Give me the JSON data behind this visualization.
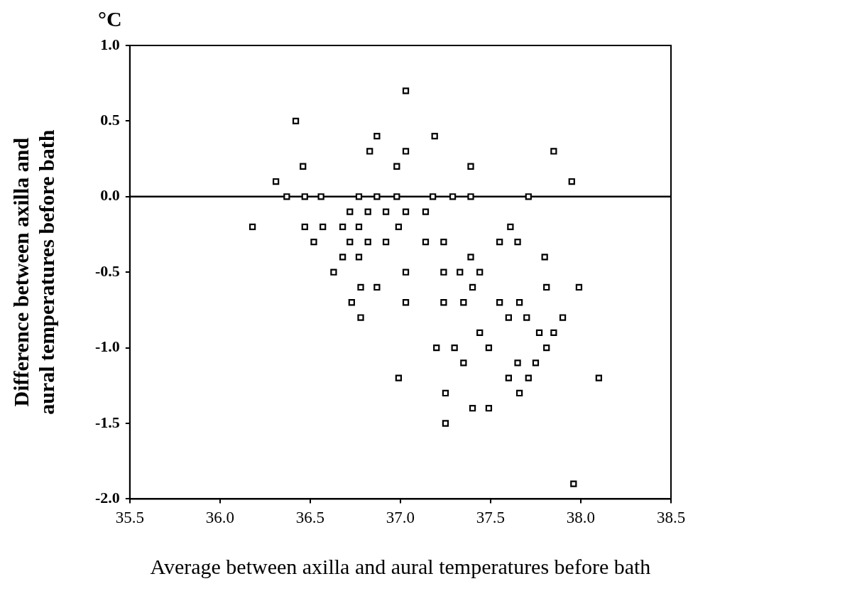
{
  "chart_data": {
    "type": "scatter",
    "xlabel": "Average between axilla and aural temperatures before bath",
    "ylabel": "Difference between axilla and\naural temperatures before bath",
    "annotations": [
      "°C"
    ],
    "marker": "square",
    "grid": false,
    "legend": false,
    "xlim": [
      35.5,
      38.5
    ],
    "xticks": [
      35.5,
      {
        "value": 36,
        "label": "36.0"
      },
      36.5,
      {
        "value": 37,
        "label": "37.0"
      },
      37.5,
      {
        "value": 38,
        "label": "38.0"
      },
      38.5
    ],
    "ylim": [
      -2,
      1
    ],
    "yticks": [
      {
        "value": -2,
        "label": "-2.0"
      },
      -1.5,
      {
        "value": -1,
        "label": "-1.0"
      },
      -0.5,
      {
        "value": 0,
        "label": "0.0"
      },
      0.5,
      {
        "value": 1,
        "label": "1.0"
      }
    ],
    "ref_lines": [
      {
        "axis": "y",
        "value": 0,
        "color": "#000000"
      }
    ],
    "series": [
      {
        "color": "#000000",
        "x": [
          37.03,
          36.42,
          36.87,
          37.19,
          36.83,
          37.03,
          37.85,
          36.46,
          36.98,
          37.39,
          36.31,
          37.95,
          36.37,
          36.47,
          36.56,
          36.77,
          36.87,
          36.98,
          37.18,
          37.29,
          37.39,
          37.71,
          36.72,
          36.82,
          36.92,
          37.03,
          37.14,
          36.18,
          36.47,
          36.57,
          36.68,
          36.77,
          36.99,
          37.61,
          36.52,
          36.72,
          36.82,
          36.92,
          37.14,
          37.24,
          37.55,
          37.65,
          36.68,
          36.77,
          37.39,
          37.8,
          36.63,
          37.03,
          37.24,
          37.33,
          37.44,
          36.78,
          36.87,
          37.4,
          37.81,
          37.99,
          36.73,
          37.03,
          37.24,
          37.35,
          37.55,
          37.66,
          36.78,
          37.6,
          37.7,
          37.9,
          37.44,
          37.77,
          37.85,
          37.2,
          37.3,
          37.49,
          37.81,
          37.35,
          37.65,
          37.75,
          36.99,
          37.6,
          37.71,
          38.1,
          37.25,
          37.66,
          37.4,
          37.49,
          37.25,
          37.96
        ],
        "values": [
          0.7,
          0.5,
          0.4,
          0.4,
          0.3,
          0.3,
          0.3,
          0.2,
          0.2,
          0.2,
          0.1,
          0.1,
          0,
          0,
          0,
          0,
          0,
          0,
          0,
          0,
          0,
          0,
          -0.1,
          -0.1,
          -0.1,
          -0.1,
          -0.1,
          -0.2,
          -0.2,
          -0.2,
          -0.2,
          -0.2,
          -0.2,
          -0.2,
          -0.3,
          -0.3,
          -0.3,
          -0.3,
          -0.3,
          -0.3,
          -0.3,
          -0.3,
          -0.4,
          -0.4,
          -0.4,
          -0.4,
          -0.5,
          -0.5,
          -0.5,
          -0.5,
          -0.5,
          -0.6,
          -0.6,
          -0.6,
          -0.6,
          -0.6,
          -0.7,
          -0.7,
          -0.7,
          -0.7,
          -0.7,
          -0.7,
          -0.8,
          -0.8,
          -0.8,
          -0.8,
          -0.9,
          -0.9,
          -0.9,
          -1,
          -1,
          -1,
          -1,
          -1.1,
          -1.1,
          -1.1,
          -1.2,
          -1.2,
          -1.2,
          -1.2,
          -1.3,
          -1.3,
          -1.4,
          -1.4,
          -1.5,
          -1.9
        ]
      }
    ]
  }
}
